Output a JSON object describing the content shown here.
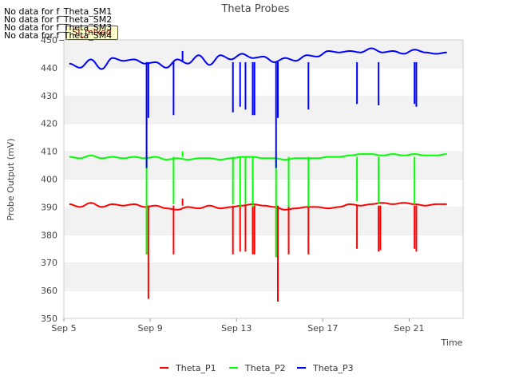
{
  "chart_data": {
    "type": "line",
    "title": "Theta Probes",
    "xlabel": "Time",
    "ylabel": "Probe Output (mV)",
    "ylim": [
      350,
      450
    ],
    "yticks": [
      350,
      360,
      370,
      380,
      390,
      400,
      410,
      420,
      430,
      440,
      450
    ],
    "xlim": [
      "2016-09-05",
      "2016-09-23T12:00"
    ],
    "xticks": [
      {
        "value": "2016-09-05",
        "label": "Sep 5"
      },
      {
        "value": "2016-09-09",
        "label": "Sep 9"
      },
      {
        "value": "2016-09-13",
        "label": "Sep 13"
      },
      {
        "value": "2016-09-17",
        "label": "Sep 17"
      },
      {
        "value": "2016-09-21",
        "label": "Sep 21"
      }
    ],
    "grid": "horizontal alternating bands",
    "legend": "bottom",
    "series": [
      {
        "name": "Theta_P1",
        "color": "#ff0000",
        "base": 390.5,
        "x": [
          "2016-09-05T06:00",
          "2016-09-05T18:00",
          "2016-09-06T06:00",
          "2016-09-06T18:00",
          "2016-09-07T06:00",
          "2016-09-07T18:00",
          "2016-09-08T06:00",
          "2016-09-08T18:00",
          "2016-09-09T06:00",
          "2016-09-09T18:00",
          "2016-09-10T06:00",
          "2016-09-10T18:00",
          "2016-09-11T06:00",
          "2016-09-11T18:00",
          "2016-09-12T06:00",
          "2016-09-12T18:00",
          "2016-09-13T06:00",
          "2016-09-13T18:00",
          "2016-09-14T06:00",
          "2016-09-14T18:00",
          "2016-09-15T06:00",
          "2016-09-15T18:00",
          "2016-09-16T06:00",
          "2016-09-16T18:00",
          "2016-09-17T06:00",
          "2016-09-17T18:00",
          "2016-09-18T06:00",
          "2016-09-18T18:00",
          "2016-09-19T06:00",
          "2016-09-19T18:00",
          "2016-09-20T06:00",
          "2016-09-20T18:00",
          "2016-09-21T06:00",
          "2016-09-21T18:00",
          "2016-09-22T06:00",
          "2016-09-22T18:00"
        ],
        "y": [
          391,
          390,
          391.5,
          390,
          391,
          390.5,
          391,
          390,
          390.5,
          389.5,
          389,
          390,
          389.5,
          390.5,
          389.5,
          390,
          390.5,
          391,
          390.5,
          390,
          389,
          389.5,
          390,
          390,
          389.5,
          390,
          391,
          390.5,
          391,
          391.5,
          391,
          391.5,
          391,
          390.5,
          391,
          391
        ],
        "spikes": [
          {
            "x": "2016-09-08T20:00",
            "y": 373
          },
          {
            "x": "2016-09-08T22:00",
            "y": 357
          },
          {
            "x": "2016-09-10T02:00",
            "y": 373
          },
          {
            "x": "2016-09-10T12:00",
            "y": 393
          },
          {
            "x": "2016-09-12T20:00",
            "y": 373
          },
          {
            "x": "2016-09-13T04:00",
            "y": 374
          },
          {
            "x": "2016-09-13T10:00",
            "y": 374
          },
          {
            "x": "2016-09-13T18:00",
            "y": 373
          },
          {
            "x": "2016-09-13T20:00",
            "y": 373
          },
          {
            "x": "2016-09-14T20:00",
            "y": 372
          },
          {
            "x": "2016-09-14T22:00",
            "y": 356
          },
          {
            "x": "2016-09-15T10:00",
            "y": 373
          },
          {
            "x": "2016-09-16T08:00",
            "y": 373
          },
          {
            "x": "2016-09-18T14:00",
            "y": 375
          },
          {
            "x": "2016-09-19T14:00",
            "y": 374
          },
          {
            "x": "2016-09-19T16:00",
            "y": 374.5
          },
          {
            "x": "2016-09-21T06:00",
            "y": 375
          },
          {
            "x": "2016-09-21T08:00",
            "y": 374
          }
        ]
      },
      {
        "name": "Theta_P2",
        "color": "#00ff00",
        "base": 408,
        "x": [
          "2016-09-05T06:00",
          "2016-09-05T18:00",
          "2016-09-06T06:00",
          "2016-09-06T18:00",
          "2016-09-07T06:00",
          "2016-09-07T18:00",
          "2016-09-08T06:00",
          "2016-09-08T18:00",
          "2016-09-09T06:00",
          "2016-09-09T18:00",
          "2016-09-10T06:00",
          "2016-09-10T18:00",
          "2016-09-11T06:00",
          "2016-09-11T18:00",
          "2016-09-12T06:00",
          "2016-09-12T18:00",
          "2016-09-13T06:00",
          "2016-09-13T18:00",
          "2016-09-14T06:00",
          "2016-09-14T18:00",
          "2016-09-15T06:00",
          "2016-09-15T18:00",
          "2016-09-16T06:00",
          "2016-09-16T18:00",
          "2016-09-17T06:00",
          "2016-09-17T18:00",
          "2016-09-18T06:00",
          "2016-09-18T18:00",
          "2016-09-19T06:00",
          "2016-09-19T18:00",
          "2016-09-20T06:00",
          "2016-09-20T18:00",
          "2016-09-21T06:00",
          "2016-09-21T18:00",
          "2016-09-22T06:00",
          "2016-09-22T18:00"
        ],
        "y": [
          408,
          407.5,
          408.5,
          407.5,
          408,
          407.5,
          408,
          407.5,
          408,
          407,
          407.5,
          407,
          407.5,
          407.5,
          407,
          407.5,
          408,
          408,
          407.5,
          407.5,
          407,
          407.5,
          407.5,
          407.5,
          408,
          408,
          408.5,
          409,
          409,
          408.5,
          409,
          408.5,
          409,
          408.5,
          408.5,
          409
        ],
        "spikes": [
          {
            "x": "2016-09-08T20:00",
            "y": 373
          },
          {
            "x": "2016-09-10T02:00",
            "y": 391
          },
          {
            "x": "2016-09-10T12:00",
            "y": 410
          },
          {
            "x": "2016-09-12T20:00",
            "y": 391
          },
          {
            "x": "2016-09-13T04:00",
            "y": 390
          },
          {
            "x": "2016-09-13T10:00",
            "y": 391
          },
          {
            "x": "2016-09-13T18:00",
            "y": 390
          },
          {
            "x": "2016-09-14T20:00",
            "y": 372
          },
          {
            "x": "2016-09-15T10:00",
            "y": 390
          },
          {
            "x": "2016-09-16T08:00",
            "y": 390
          },
          {
            "x": "2016-09-18T14:00",
            "y": 392
          },
          {
            "x": "2016-09-19T14:00",
            "y": 391
          },
          {
            "x": "2016-09-21T06:00",
            "y": 391
          }
        ]
      },
      {
        "name": "Theta_P3",
        "color": "#0000ff",
        "base": 442,
        "x": [
          "2016-09-05T06:00",
          "2016-09-05T18:00",
          "2016-09-06T06:00",
          "2016-09-06T18:00",
          "2016-09-07T06:00",
          "2016-09-07T18:00",
          "2016-09-08T06:00",
          "2016-09-08T18:00",
          "2016-09-09T06:00",
          "2016-09-09T18:00",
          "2016-09-10T06:00",
          "2016-09-10T18:00",
          "2016-09-11T06:00",
          "2016-09-11T18:00",
          "2016-09-12T06:00",
          "2016-09-12T18:00",
          "2016-09-13T06:00",
          "2016-09-13T18:00",
          "2016-09-14T06:00",
          "2016-09-14T18:00",
          "2016-09-15T06:00",
          "2016-09-15T18:00",
          "2016-09-16T06:00",
          "2016-09-16T18:00",
          "2016-09-17T06:00",
          "2016-09-17T18:00",
          "2016-09-18T06:00",
          "2016-09-18T18:00",
          "2016-09-19T06:00",
          "2016-09-19T18:00",
          "2016-09-20T06:00",
          "2016-09-20T18:00",
          "2016-09-21T06:00",
          "2016-09-21T18:00",
          "2016-09-22T06:00",
          "2016-09-22T18:00"
        ],
        "y": [
          441.5,
          440,
          443,
          439.5,
          443.5,
          442.5,
          443,
          441.5,
          442,
          440,
          443,
          441.5,
          444.5,
          441,
          444.5,
          443,
          445,
          443.5,
          444,
          442,
          443.5,
          442.5,
          444.5,
          444,
          446,
          445.5,
          446,
          445.5,
          447,
          445.5,
          446,
          445,
          446.5,
          445.5,
          445,
          445.5
        ],
        "spikes": [
          {
            "x": "2016-09-08T20:00",
            "y": 404
          },
          {
            "x": "2016-09-08T22:00",
            "y": 422
          },
          {
            "x": "2016-09-10T02:00",
            "y": 423
          },
          {
            "x": "2016-09-10T12:00",
            "y": 446
          },
          {
            "x": "2016-09-12T20:00",
            "y": 424
          },
          {
            "x": "2016-09-13T04:00",
            "y": 426
          },
          {
            "x": "2016-09-13T10:00",
            "y": 425
          },
          {
            "x": "2016-09-13T18:00",
            "y": 423
          },
          {
            "x": "2016-09-13T20:00",
            "y": 423
          },
          {
            "x": "2016-09-14T20:00",
            "y": 404
          },
          {
            "x": "2016-09-14T22:00",
            "y": 422
          },
          {
            "x": "2016-09-16T08:00",
            "y": 425
          },
          {
            "x": "2016-09-18T14:00",
            "y": 427
          },
          {
            "x": "2016-09-19T14:00",
            "y": 426.5
          },
          {
            "x": "2016-09-21T06:00",
            "y": 427
          },
          {
            "x": "2016-09-21T08:00",
            "y": 426
          }
        ]
      }
    ]
  },
  "no_data_notes": [
    "No data for f_Theta_SM1",
    "No data for f_Theta_SM2",
    "No data for f_Theta_SM3",
    "No data for f_Theta_SM4"
  ],
  "badge_label": "SI_mixed"
}
